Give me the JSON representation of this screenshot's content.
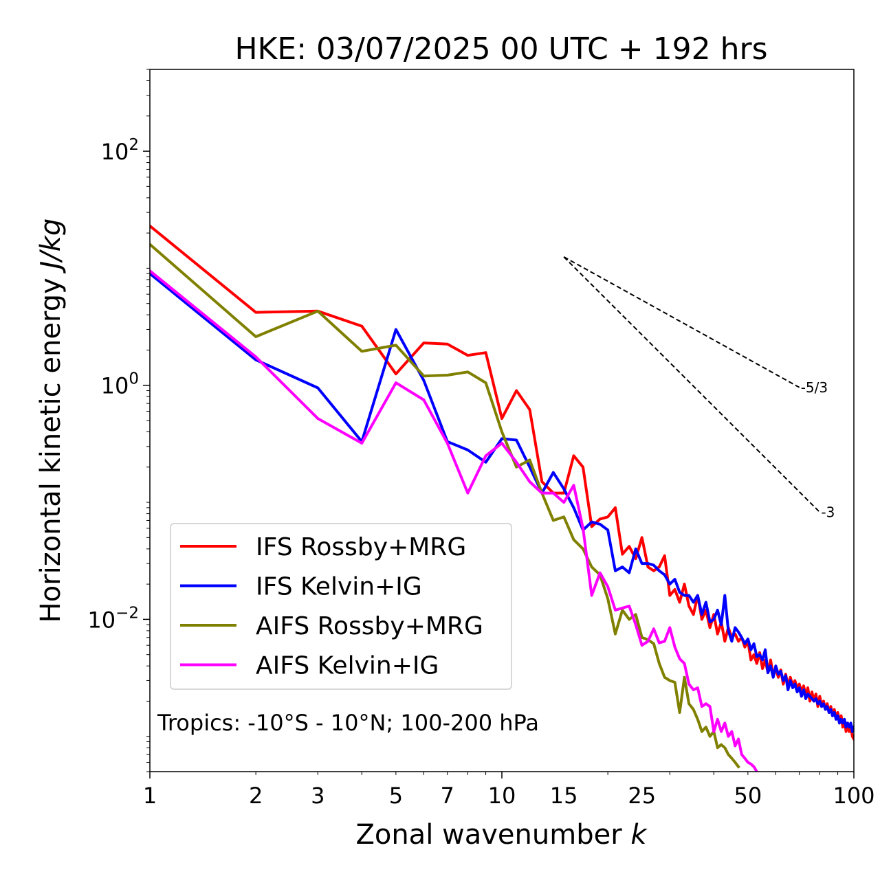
{
  "chart_data": {
    "type": "line",
    "title": "HKE: 03/07/2025 00 UTC + 192 hrs",
    "xlabel": "Zonal wavenumber ",
    "xlabel_italic": "k",
    "ylabel": "Horizontal kinetic energy ",
    "ylabel_italic": "J/kg",
    "x_scale": "log",
    "y_scale": "log",
    "xlim": [
      1,
      100
    ],
    "ylim": [
      0.0005,
      500
    ],
    "x_ticks": [
      1,
      2,
      3,
      5,
      7,
      10,
      15,
      25,
      50,
      100
    ],
    "x_tick_labels": [
      "1",
      "2",
      "3",
      "5",
      "7",
      "10",
      "15",
      "25",
      "50",
      "100"
    ],
    "y_ticks": [
      100,
      1,
      0.01
    ],
    "y_tick_labels": [
      {
        "base": "10",
        "exp": "2"
      },
      {
        "base": "10",
        "exp": "0"
      },
      {
        "base": "10",
        "exp": "−2"
      }
    ],
    "grid": false,
    "legend_position": "lower-left",
    "annotation": "Tropics: -10°S - 10°N; 100-200 hPa",
    "reference_slopes": [
      {
        "label": "-5/3",
        "slope": -1.6667,
        "x_start": 15,
        "x_end": 70,
        "y_start": 12.5
      },
      {
        "label": "-3",
        "slope": -3,
        "x_start": 15,
        "x_end": 80,
        "y_start": 12.5
      }
    ],
    "series": [
      {
        "name": "IFS Rossby+MRG",
        "color": "#ff0000",
        "x": [
          1,
          2,
          3,
          4,
          5,
          6,
          7,
          8,
          9,
          10,
          11,
          12,
          13,
          14,
          15,
          16,
          17,
          18,
          19,
          20,
          21,
          22,
          23,
          24,
          25,
          26,
          27,
          28,
          29,
          30,
          31,
          32,
          33,
          34,
          35,
          36,
          37,
          38,
          39,
          40,
          41,
          42,
          43,
          44,
          45,
          46,
          47,
          48,
          49,
          50,
          51,
          52,
          53,
          54,
          55,
          56,
          57,
          58,
          59,
          60,
          61,
          62,
          63,
          64,
          65,
          66,
          67,
          68,
          69,
          70,
          71,
          72,
          73,
          74,
          75,
          76,
          77,
          78,
          79,
          80,
          81,
          82,
          83,
          84,
          85,
          86,
          87,
          88,
          89,
          90,
          91,
          92,
          93,
          94,
          95,
          96,
          97,
          98,
          99,
          100
        ],
        "y": [
          23,
          4.2,
          4.3,
          3.2,
          1.25,
          2.3,
          2.25,
          1.8,
          1.9,
          0.52,
          0.9,
          0.62,
          0.15,
          0.12,
          0.12,
          0.25,
          0.2,
          0.062,
          0.072,
          0.075,
          0.09,
          0.036,
          0.042,
          0.033,
          0.05,
          0.028,
          0.026,
          0.028,
          0.035,
          0.016,
          0.018,
          0.014,
          0.02,
          0.013,
          0.011,
          0.016,
          0.01,
          0.012,
          0.0085,
          0.011,
          0.0075,
          0.0095,
          0.0065,
          0.0085,
          0.007,
          0.0075,
          0.0065,
          0.007,
          0.0058,
          0.0065,
          0.0045,
          0.005,
          0.0042,
          0.0052,
          0.0038,
          0.0045,
          0.0035,
          0.0045,
          0.0033,
          0.0038,
          0.0032,
          0.0037,
          0.0028,
          0.0034,
          0.0027,
          0.0032,
          0.0027,
          0.003,
          0.0026,
          0.0028,
          0.0024,
          0.0027,
          0.0022,
          0.0026,
          0.002,
          0.0024,
          0.002,
          0.0023,
          0.0018,
          0.0022,
          0.0018,
          0.002,
          0.0017,
          0.0019,
          0.0016,
          0.0018,
          0.0015,
          0.0017,
          0.0014,
          0.0016,
          0.0013,
          0.0015,
          0.0012,
          0.0014,
          0.0011,
          0.0013,
          0.0011,
          0.0012,
          0.001,
          0.00095
        ]
      },
      {
        "name": "IFS Kelvin+IG",
        "color": "#0000ff",
        "x": [
          1,
          2,
          3,
          4,
          5,
          6,
          7,
          8,
          9,
          10,
          11,
          12,
          13,
          14,
          15,
          16,
          17,
          18,
          19,
          20,
          21,
          22,
          23,
          24,
          25,
          26,
          27,
          28,
          29,
          30,
          31,
          32,
          33,
          34,
          35,
          36,
          37,
          38,
          39,
          40,
          41,
          42,
          43,
          44,
          45,
          46,
          47,
          48,
          49,
          50,
          51,
          52,
          53,
          54,
          55,
          56,
          57,
          58,
          59,
          60,
          61,
          62,
          63,
          64,
          65,
          66,
          67,
          68,
          69,
          70,
          71,
          72,
          73,
          74,
          75,
          76,
          77,
          78,
          79,
          80,
          81,
          82,
          83,
          84,
          85,
          86,
          87,
          88,
          89,
          90,
          91,
          92,
          93,
          94,
          95,
          96,
          97,
          98,
          99,
          100
        ],
        "y": [
          9,
          1.65,
          0.95,
          0.33,
          3,
          1.1,
          0.33,
          0.28,
          0.22,
          0.35,
          0.34,
          0.2,
          0.12,
          0.18,
          0.13,
          0.09,
          0.058,
          0.068,
          0.065,
          0.058,
          0.026,
          0.028,
          0.025,
          0.04,
          0.03,
          0.03,
          0.029,
          0.026,
          0.024,
          0.02,
          0.022,
          0.017,
          0.016,
          0.016,
          0.014,
          0.016,
          0.011,
          0.014,
          0.0095,
          0.01,
          0.012,
          0.009,
          0.016,
          0.008,
          0.0065,
          0.0085,
          0.0078,
          0.007,
          0.0062,
          0.0068,
          0.0055,
          0.0062,
          0.0048,
          0.005,
          0.0045,
          0.0055,
          0.0035,
          0.004,
          0.0032,
          0.004,
          0.0034,
          0.0036,
          0.003,
          0.0033,
          0.0025,
          0.003,
          0.0026,
          0.0028,
          0.0024,
          0.0026,
          0.0022,
          0.0025,
          0.0021,
          0.0023,
          0.0022,
          0.0021,
          0.002,
          0.0021,
          0.0019,
          0.002,
          0.0018,
          0.0019,
          0.0017,
          0.0018,
          0.0016,
          0.0017,
          0.0015,
          0.0016,
          0.0014,
          0.0015,
          0.0013,
          0.0014,
          0.0013,
          0.0014,
          0.0012,
          0.0013,
          0.0012,
          0.0013,
          0.0011,
          0.0012
        ]
      },
      {
        "name": "AIFS Rossby+MRG",
        "color": "#808000",
        "x": [
          1,
          2,
          3,
          4,
          5,
          6,
          7,
          8,
          9,
          10,
          11,
          12,
          13,
          14,
          15,
          16,
          17,
          18,
          19,
          20,
          21,
          22,
          23,
          24,
          25,
          26,
          27,
          28,
          29,
          30,
          31,
          32,
          33,
          34,
          35,
          36,
          37,
          38,
          39,
          40,
          41,
          42,
          43,
          44,
          45,
          46,
          47
        ],
        "y": [
          16,
          2.6,
          4.3,
          1.95,
          2.2,
          1.2,
          1.22,
          1.3,
          1.05,
          0.4,
          0.2,
          0.23,
          0.12,
          0.07,
          0.075,
          0.048,
          0.04,
          0.028,
          0.024,
          0.015,
          0.0075,
          0.012,
          0.01,
          0.011,
          0.007,
          0.0067,
          0.0062,
          0.0042,
          0.0032,
          0.003,
          0.0029,
          0.0016,
          0.0032,
          0.0019,
          0.0017,
          0.0014,
          0.0011,
          0.0012,
          0.001,
          0.0011,
          0.0008,
          0.00085,
          0.0008,
          0.0007,
          0.00065,
          0.0006,
          0.00055
        ]
      },
      {
        "name": "AIFS Kelvin+IG",
        "color": "#ff00ff",
        "x": [
          1,
          2,
          3,
          4,
          5,
          6,
          7,
          8,
          9,
          10,
          11,
          12,
          13,
          14,
          15,
          16,
          17,
          18,
          19,
          20,
          21,
          22,
          23,
          24,
          25,
          26,
          27,
          28,
          29,
          30,
          31,
          32,
          33,
          34,
          35,
          36,
          37,
          38,
          39,
          40,
          41,
          42,
          43,
          44,
          45,
          46,
          47,
          48,
          49,
          50,
          51,
          52,
          53
        ],
        "y": [
          9.5,
          1.75,
          0.52,
          0.32,
          1.05,
          0.75,
          0.32,
          0.12,
          0.25,
          0.32,
          0.22,
          0.15,
          0.12,
          0.12,
          0.1,
          0.14,
          0.06,
          0.016,
          0.025,
          0.019,
          0.012,
          0.0125,
          0.013,
          0.009,
          0.006,
          0.0065,
          0.0083,
          0.0063,
          0.0065,
          0.0085,
          0.0058,
          0.0046,
          0.0042,
          0.0028,
          0.0025,
          0.0026,
          0.0018,
          0.0019,
          0.0018,
          0.0011,
          0.0014,
          0.0011,
          0.0013,
          0.001,
          0.0011,
          0.00083,
          0.00095,
          0.0007,
          0.00065,
          0.0006,
          0.00058,
          0.00055,
          0.0005
        ]
      }
    ]
  }
}
